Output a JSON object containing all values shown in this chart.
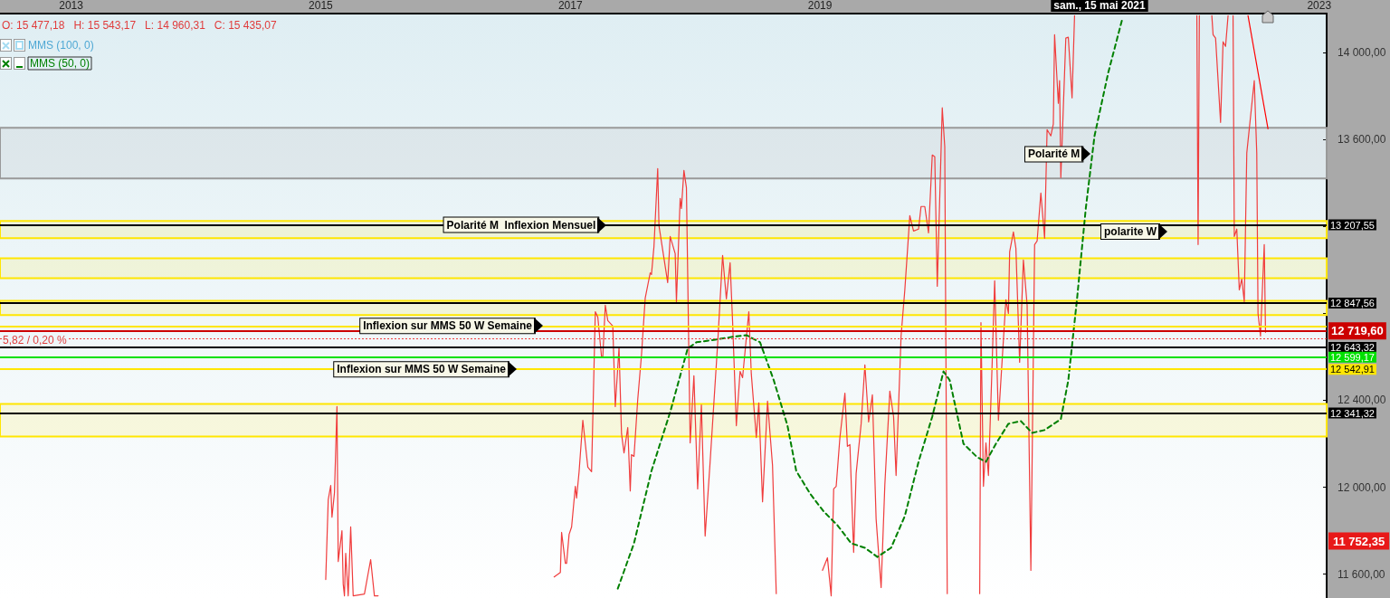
{
  "chart_data": {
    "type": "line",
    "legend": "top left",
    "marker": "none",
    "xlim": [
      2012.43,
      2023.06
    ],
    "xticks": [
      2013,
      2015,
      2017,
      2019,
      2023
    ],
    "ylim": [
      11490,
      14180
    ],
    "yticks": [
      {
        "value": 11600,
        "label": "11 600,00"
      },
      {
        "value": 12000,
        "label": "12 000,00"
      },
      {
        "value": 12400,
        "label": "12 400,00"
      },
      {
        "value": 12800,
        "label": null
      },
      {
        "value": 13200,
        "label": null
      },
      {
        "value": 13600,
        "label": "13 600,00"
      },
      {
        "value": 14000,
        "label": "14 000,00"
      }
    ],
    "series": [
      {
        "color": "#f03c3c",
        "line_style": "solid",
        "x": [
          2015.04,
          2015.06,
          2015.08,
          2015.09,
          2015.11,
          2015.13,
          2015.14,
          2015.17,
          2015.18,
          2015.19,
          2015.2,
          2015.22,
          2015.24,
          2015.26,
          2015.35,
          2015.4,
          2015.43,
          2015.46,
          2015.5,
          2016.87,
          2016.92,
          2016.93,
          2016.96,
          2016.97,
          2016.99,
          2017.01,
          2017.04,
          2017.05,
          2017.07,
          2017.1,
          2017.14,
          2017.17,
          2017.2,
          2017.22,
          2017.25,
          2017.26,
          2017.28,
          2017.3,
          2017.34,
          2017.36,
          2017.39,
          2017.41,
          2017.43,
          2017.46,
          2017.48,
          2017.49,
          2017.51,
          2017.54,
          2017.57,
          2017.6,
          2017.64,
          2017.65,
          2017.67,
          2017.7,
          2017.71,
          2017.75,
          2017.78,
          2017.8,
          2017.84,
          2017.85,
          2017.88,
          2017.89,
          2017.91,
          2017.93,
          2017.96,
          2017.99,
          2018.02,
          2018.05,
          2018.08,
          2018.12,
          2018.18,
          2018.22,
          2018.25,
          2018.28,
          2018.3,
          2018.33,
          2018.36,
          2018.38,
          2018.43,
          2018.45,
          2018.49,
          2018.51,
          2018.54,
          2018.58,
          2018.62,
          2018.65,
          2018.8,
          2019.02,
          2019.06,
          2019.09,
          2019.11,
          2019.13,
          2019.16,
          2019.2,
          2019.22,
          2019.24,
          2019.27,
          2019.29,
          2019.33,
          2019.36,
          2019.39,
          2019.42,
          2019.45,
          2019.49,
          2019.52,
          2019.56,
          2019.59,
          2019.61,
          2019.65,
          2019.68,
          2019.72,
          2019.75,
          2019.79,
          2019.81,
          2019.84,
          2019.87,
          2019.9,
          2019.92,
          2019.94,
          2019.98,
          2020.0,
          2020.02,
          2020.15,
          2020.28,
          2020.29,
          2020.31,
          2020.33,
          2020.35,
          2020.38,
          2020.4,
          2020.43,
          2020.49,
          2020.51,
          2020.52,
          2020.55,
          2020.57,
          2020.6,
          2020.63,
          2020.66,
          2020.69,
          2020.72,
          2020.74,
          2020.77,
          2020.8,
          2020.82,
          2020.85,
          2020.87,
          2020.88,
          2020.91,
          2020.92,
          2020.93,
          2020.97,
          2020.99,
          2021.02,
          2021.04,
          2021.5,
          2022.02,
          2022.03,
          2022.04,
          2022.1,
          2022.14,
          2022.15,
          2022.17,
          2022.21,
          2022.23,
          2022.25,
          2022.27,
          2022.29,
          2022.31,
          2022.32,
          2022.34,
          2022.36,
          2022.38,
          2022.4,
          2022.42,
          2022.48,
          2022.5,
          2022.51,
          2022.53,
          2022.54,
          2022.56,
          2022.57
        ],
        "values": [
          11575,
          11942,
          12008,
          11862,
          11975,
          12371,
          11658,
          11800,
          11554,
          11500,
          11696,
          11500,
          11817,
          11500,
          11508,
          11667,
          11500,
          11500,
          null,
          11587,
          11608,
          11792,
          11650,
          11650,
          11783,
          11817,
          12004,
          11950,
          12071,
          12308,
          12092,
          12071,
          12808,
          12783,
          12600,
          12600,
          12838,
          12767,
          12742,
          12371,
          12642,
          12246,
          12158,
          12275,
          11983,
          12150,
          12142,
          12404,
          12608,
          12871,
          12987,
          12979,
          13108,
          13467,
          13204,
          13054,
          12942,
          13154,
          13075,
          12854,
          13329,
          13283,
          13458,
          13379,
          12204,
          12513,
          11992,
          12379,
          11775,
          12117,
          12658,
          13067,
          12867,
          13033,
          12763,
          12283,
          12533,
          12504,
          12808,
          12521,
          12229,
          12388,
          11933,
          12396,
          12100,
          11510,
          null,
          11617,
          11675,
          11500,
          11992,
          12004,
          12229,
          12433,
          12188,
          12196,
          11700,
          12063,
          12292,
          12563,
          12300,
          12425,
          11854,
          11538,
          12013,
          12442,
          12325,
          12054,
          12696,
          12908,
          13250,
          13179,
          13188,
          13292,
          13292,
          13171,
          13529,
          13521,
          12925,
          13746,
          13567,
          11510,
          null,
          11510,
          12758,
          12004,
          12204,
          12054,
          12575,
          12950,
          12308,
          12863,
          12800,
          13083,
          13175,
          13100,
          12575,
          13046,
          12838,
          11617,
          13117,
          13133,
          13354,
          13146,
          13646,
          13617,
          13671,
          14083,
          13767,
          13871,
          13425,
          14067,
          14071,
          13792,
          14170,
          null,
          14170,
          13117,
          14170,
          null,
          14170,
          14083,
          14067,
          13679,
          14050,
          14029,
          14170,
          null,
          14170,
          13154,
          13188,
          12908,
          12958,
          12854,
          13538,
          13871,
          13538,
          12800,
          12696,
          12838,
          13117,
          12713
        ]
      },
      {
        "name": "MMS (50, 0)",
        "color": "#008000",
        "line_style": "dashed",
        "x": [
          2017.38,
          2017.51,
          2017.65,
          2017.8,
          2017.94,
          2018.01,
          2018.16,
          2018.3,
          2018.41,
          2018.52,
          2018.63,
          2018.74,
          2018.81,
          2018.92,
          2019.03,
          2019.14,
          2019.25,
          2019.36,
          2019.46,
          2019.57,
          2019.68,
          2019.79,
          2019.9,
          2019.99,
          2020.04,
          2020.15,
          2020.26,
          2020.33,
          2020.41,
          2020.51,
          2020.61,
          2020.7,
          2020.8,
          2020.93,
          2020.99,
          2021.06,
          2021.13,
          2021.2,
          2021.31,
          2021.42
        ],
        "values": [
          11533,
          11742,
          12075,
          12346,
          12638,
          12667,
          12679,
          12692,
          12700,
          12667,
          12492,
          12283,
          12075,
          11971,
          11888,
          11825,
          11742,
          11721,
          11679,
          11721,
          11867,
          12117,
          12325,
          12533,
          12492,
          12200,
          12138,
          12117,
          12200,
          12292,
          12304,
          12250,
          12263,
          12313,
          12492,
          12867,
          13283,
          13617,
          13908,
          14150
        ]
      },
      {
        "color": "#ff0000",
        "line_style": "solid",
        "x": [
          2022.43,
          2022.59
        ],
        "values": [
          14170,
          13650
        ]
      }
    ],
    "ref_lines": [
      {
        "axis": "y",
        "value": 13207.55,
        "label": "13 207,55",
        "color": "#000000",
        "line_style": "solid"
      },
      {
        "axis": "y",
        "value": 12847.56,
        "label": "12 847,56",
        "color": "#000000",
        "line_style": "solid"
      },
      {
        "axis": "y",
        "value": 12742,
        "label": null,
        "color": "#ffe600",
        "line_style": "solid"
      },
      {
        "axis": "y",
        "value": 12685,
        "label": null,
        "color": "#f03c3c",
        "line_style": "dotted"
      },
      {
        "axis": "y",
        "value": 12643.32,
        "label": "12 643,32",
        "color": "#000000",
        "line_style": "solid"
      },
      {
        "axis": "y",
        "value": 12599.17,
        "label": "12 599,17",
        "color": "#00e000",
        "line_style": "solid"
      },
      {
        "axis": "y",
        "value": 12542.91,
        "label": "12 542,91",
        "color": "#ffe600",
        "line_style": "solid"
      },
      {
        "axis": "y",
        "value": 12341.32,
        "label": "12 341,32",
        "color": "#000000",
        "line_style": "solid"
      },
      {
        "axis": "y",
        "value": 12719.6,
        "label": "12 719,60",
        "color": "#cc0000",
        "line_style": "solid"
      }
    ],
    "bands": [
      {
        "axis": "y",
        "from": 13421,
        "to": 13654,
        "color": "#999999"
      },
      {
        "axis": "y",
        "from": 13146,
        "to": 13225,
        "color": "#ffe600"
      },
      {
        "axis": "y",
        "from": 12962,
        "to": 13054,
        "color": "#ffe600"
      },
      {
        "axis": "y",
        "from": 12792,
        "to": 12858,
        "color": "#ffe600"
      },
      {
        "axis": "y",
        "from": 12233,
        "to": 12383,
        "color": "#ffe600"
      }
    ],
    "annotations": [
      "O: 15 477,18   H: 15 543,17   L: 14 960,31   C: 15 435,07",
      "MMS (100, 0)",
      "5,82 / 0,20 %",
      "polarite W",
      "sam., 15 mai 2021",
      "11 752,35",
      {
        "text": "Polarité M  Inflexion Mensuel",
        "x": 2017.29,
        "y": 13207.55
      },
      {
        "text": "Inflexion sur MMS 50 W Semaine",
        "x": 2016.78,
        "y": 12742
      },
      {
        "text": "Inflexion sur MMS 50 W Semaine",
        "x": 2016.57,
        "y": 12542.91
      },
      {
        "text": "Polarité M",
        "x": 2021.17,
        "y": 13533
      }
    ]
  }
}
